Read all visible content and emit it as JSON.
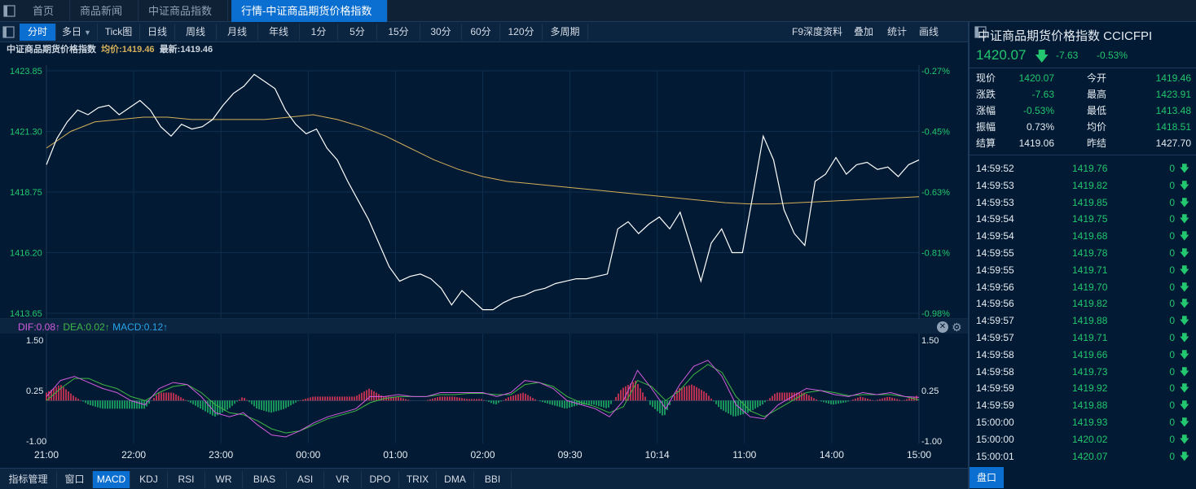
{
  "tabs": [
    {
      "label": "首页"
    },
    {
      "label": "商品新闻"
    },
    {
      "label": "中证商品指数"
    },
    {
      "label": "行情-中证商品期货价格指数"
    }
  ],
  "toolbar": {
    "periods": [
      "分时",
      "多日",
      "Tick图",
      "日线",
      "周线",
      "月线",
      "年线",
      "1分",
      "5分",
      "15分",
      "30分",
      "60分",
      "120分",
      "多周期"
    ],
    "right": [
      "F9深度资料",
      "叠加",
      "统计",
      "画线"
    ]
  },
  "infoline": {
    "name": "中证商品期货价格指数",
    "avg": "均价:1419.46",
    "last": "最新:1419.46"
  },
  "chart_data": [
    {
      "type": "line",
      "title": "",
      "ylim": [
        1413.65,
        1423.85
      ],
      "y_ticks": [
        "1423.85",
        "1421.30",
        "1418.75",
        "1416.20",
        "1413.65"
      ],
      "pct_ticks": [
        "-0.27%",
        "-0.45%",
        "-0.63%",
        "-0.81%",
        "-0.98%"
      ],
      "x_ticks": [
        "21:00",
        "22:00",
        "23:00",
        "00:00",
        "01:00",
        "02:00",
        "09:30",
        "10:14",
        "11:00",
        "14:00",
        "15:00"
      ],
      "series": [
        {
          "name": "price",
          "color": "#ffffff",
          "values": [
            1419.9,
            1421.0,
            1421.7,
            1422.2,
            1422.0,
            1422.3,
            1422.4,
            1422.0,
            1422.3,
            1422.6,
            1422.2,
            1421.5,
            1421.1,
            1421.6,
            1421.4,
            1421.5,
            1421.8,
            1422.4,
            1422.9,
            1423.2,
            1423.7,
            1423.4,
            1423.1,
            1422.2,
            1421.6,
            1421.2,
            1421.4,
            1420.6,
            1420.1,
            1419.2,
            1418.4,
            1417.6,
            1416.6,
            1415.6,
            1415.0,
            1415.2,
            1415.3,
            1415.1,
            1414.7,
            1414.0,
            1414.6,
            1414.2,
            1413.8,
            1413.8,
            1414.1,
            1414.3,
            1414.4,
            1414.6,
            1414.7,
            1414.9,
            1415.0,
            1415.1,
            1415.1,
            1415.2,
            1415.3,
            1417.2,
            1417.5,
            1417.0,
            1417.4,
            1417.7,
            1417.2,
            1417.9,
            1416.5,
            1415.0,
            1416.6,
            1417.2,
            1416.2,
            1416.2,
            1418.6,
            1421.1,
            1420.1,
            1418.0,
            1417.0,
            1416.5,
            1419.2,
            1419.5,
            1420.2,
            1419.5,
            1419.9,
            1420.0,
            1419.7,
            1419.8,
            1419.4,
            1419.9,
            1420.1
          ]
        },
        {
          "name": "avg",
          "color": "#d4b05a",
          "values": [
            1420.6,
            1421.3,
            1421.7,
            1421.8,
            1421.9,
            1421.9,
            1421.8,
            1421.8,
            1421.8,
            1421.8,
            1421.9,
            1422.0,
            1421.8,
            1421.5,
            1421.1,
            1420.6,
            1420.1,
            1419.7,
            1419.4,
            1419.2,
            1419.1,
            1419.0,
            1418.9,
            1418.8,
            1418.7,
            1418.6,
            1418.5,
            1418.4,
            1418.3,
            1418.25,
            1418.25,
            1418.3,
            1418.35,
            1418.4,
            1418.45,
            1418.5,
            1418.55
          ]
        }
      ]
    },
    {
      "type": "bar",
      "title": "",
      "legend": [
        "DIF:0.08↑",
        "DEA:0.02↑",
        "MACD:0.12↑"
      ],
      "ylim": [
        -1.0,
        1.5
      ],
      "y_ticks": [
        "1.50",
        "0.25",
        "-1.00"
      ],
      "series": [
        {
          "name": "DIF",
          "color": "#d35de0",
          "values": [
            0.1,
            0.5,
            0.6,
            0.45,
            0.3,
            0.2,
            0.0,
            -0.1,
            0.3,
            0.45,
            0.4,
            0.1,
            -0.3,
            -0.4,
            -0.3,
            -0.6,
            -0.85,
            -0.9,
            -0.75,
            -0.55,
            -0.4,
            -0.3,
            -0.2,
            0.1,
            0.1,
            0.15,
            0.1,
            0.1,
            0.2,
            0.2,
            0.2,
            0.2,
            0.1,
            0.2,
            0.5,
            0.45,
            0.3,
            0.0,
            -0.1,
            -0.2,
            -0.4,
            0.0,
            0.75,
            0.3,
            -0.2,
            0.4,
            0.85,
            1.0,
            0.6,
            -0.1,
            -0.4,
            -0.45,
            -0.1,
            0.1,
            0.3,
            0.25,
            0.15,
            0.1,
            0.2,
            0.15,
            0.2,
            0.1,
            0.08
          ]
        },
        {
          "name": "DEA",
          "color": "#3fb846",
          "values": [
            0.0,
            0.3,
            0.55,
            0.55,
            0.4,
            0.3,
            0.1,
            0.0,
            0.2,
            0.35,
            0.4,
            0.2,
            -0.1,
            -0.3,
            -0.35,
            -0.5,
            -0.7,
            -0.8,
            -0.75,
            -0.6,
            -0.45,
            -0.35,
            -0.25,
            -0.05,
            0.05,
            0.1,
            0.1,
            0.1,
            0.15,
            0.15,
            0.18,
            0.18,
            0.15,
            0.15,
            0.4,
            0.45,
            0.35,
            0.1,
            -0.05,
            -0.15,
            -0.3,
            -0.15,
            0.5,
            0.35,
            0.0,
            0.25,
            0.65,
            0.9,
            0.7,
            0.1,
            -0.25,
            -0.4,
            -0.2,
            0.0,
            0.2,
            0.25,
            0.2,
            0.12,
            0.15,
            0.15,
            0.15,
            0.1,
            0.02
          ]
        },
        {
          "name": "MACD",
          "values": [
            0.2,
            0.4,
            0.1,
            -0.1,
            -0.2,
            -0.2,
            -0.2,
            -0.2,
            0.2,
            0.2,
            0.0,
            -0.2,
            -0.4,
            -0.2,
            0.1,
            -0.2,
            -0.3,
            -0.2,
            0.0,
            0.1,
            0.1,
            0.1,
            0.1,
            0.3,
            0.1,
            0.1,
            0.0,
            0.0,
            0.1,
            0.1,
            0.04,
            0.04,
            -0.1,
            0.1,
            0.2,
            0.0,
            -0.1,
            -0.2,
            -0.1,
            -0.1,
            -0.2,
            0.3,
            0.5,
            -0.1,
            -0.4,
            0.3,
            0.4,
            0.2,
            -0.2,
            -0.4,
            -0.3,
            -0.1,
            0.2,
            0.2,
            0.2,
            0.0,
            -0.1,
            -0.04,
            0.1,
            0.0,
            0.1,
            0.0,
            0.12
          ]
        }
      ]
    }
  ],
  "bottombar": [
    "指标管理",
    "窗口",
    "MACD",
    "KDJ",
    "RSI",
    "WR",
    "BIAS",
    "ASI",
    "VR",
    "DPO",
    "TRIX",
    "DMA",
    "BBI"
  ],
  "right": {
    "title": "中证商品期货价格指数  CCICFPI",
    "price": "1420.07",
    "chg": "-7.63",
    "pct": "-0.53%",
    "quote_rows": [
      {
        "l": "现价",
        "v": "1420.07",
        "l2": "今开",
        "v2": "1419.46",
        "v2c": "#22c76f"
      },
      {
        "l": "涨跌",
        "v": "-7.63",
        "l2": "最高",
        "v2": "1423.91",
        "v2c": "#22c76f"
      },
      {
        "l": "涨幅",
        "v": "-0.53%",
        "l2": "最低",
        "v2": "1413.48",
        "v2c": "#22c76f"
      },
      {
        "l": "振幅",
        "v": "0.73%",
        "l2": "均价",
        "v2": "1418.51",
        "v2c": "#22c76f",
        "vc": "#e6ecf2"
      },
      {
        "l": "结算",
        "v": "1419.06",
        "l2": "昨结",
        "v2": "1427.70",
        "v2c": "#e6ecf2",
        "vc": "#e6ecf2"
      }
    ],
    "ticks": [
      {
        "t": "14:59:52",
        "p": "1419.76",
        "v": "0"
      },
      {
        "t": "14:59:53",
        "p": "1419.82",
        "v": "0"
      },
      {
        "t": "14:59:53",
        "p": "1419.85",
        "v": "0"
      },
      {
        "t": "14:59:54",
        "p": "1419.75",
        "v": "0"
      },
      {
        "t": "14:59:54",
        "p": "1419.68",
        "v": "0"
      },
      {
        "t": "14:59:55",
        "p": "1419.78",
        "v": "0"
      },
      {
        "t": "14:59:55",
        "p": "1419.71",
        "v": "0"
      },
      {
        "t": "14:59:56",
        "p": "1419.70",
        "v": "0"
      },
      {
        "t": "14:59:56",
        "p": "1419.82",
        "v": "0"
      },
      {
        "t": "14:59:57",
        "p": "1419.88",
        "v": "0"
      },
      {
        "t": "14:59:57",
        "p": "1419.71",
        "v": "0"
      },
      {
        "t": "14:59:58",
        "p": "1419.66",
        "v": "0"
      },
      {
        "t": "14:59:58",
        "p": "1419.73",
        "v": "0"
      },
      {
        "t": "14:59:59",
        "p": "1419.92",
        "v": "0"
      },
      {
        "t": "14:59:59",
        "p": "1419.88",
        "v": "0"
      },
      {
        "t": "15:00:00",
        "p": "1419.93",
        "v": "0"
      },
      {
        "t": "15:00:00",
        "p": "1420.02",
        "v": "0"
      },
      {
        "t": "15:00:01",
        "p": "1420.07",
        "v": "0"
      }
    ],
    "pankou": "盘口"
  },
  "colors": {
    "up": "#ff3b5c",
    "down": "#22c76f",
    "accent": "#0a6fd0",
    "bg": "#021a33"
  }
}
